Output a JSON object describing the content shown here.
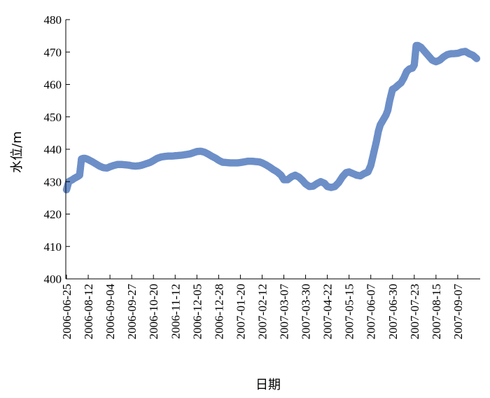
{
  "chart_data": {
    "type": "scatter",
    "title": "",
    "xlabel": "日期",
    "ylabel": "水位/m",
    "ylim": [
      400,
      480
    ],
    "xlim": [
      "2006-06-25",
      "2007-09-27"
    ],
    "y_ticks": [
      "400",
      "410",
      "420",
      "430",
      "440",
      "450",
      "460",
      "470",
      "480"
    ],
    "x_ticks": [
      "2006-06-25",
      "2006-08-12",
      "2006-09-04",
      "2006-09-27",
      "2006-10-20",
      "2006-11-12",
      "2006-12-05",
      "2006-12-28",
      "2007-01-20",
      "2007-02-12",
      "2007-03-07",
      "2007-03-30",
      "2007-04-22",
      "2007-05-15",
      "2007-06-07",
      "2007-06-30",
      "2007-07-23",
      "2007-08-15",
      "2007-09-07"
    ],
    "grid": false,
    "marker_color": "#6d8fc8",
    "series": [
      {
        "x": [
          "2006-06-25",
          "2006-06-27",
          "2006-06-30",
          "2006-07-04",
          "2006-07-08",
          "2006-07-12",
          "2006-07-16",
          "2006-07-20",
          "2006-07-24",
          "2006-07-28",
          "2006-08-01",
          "2006-08-05",
          "2006-08-09",
          "2006-08-12",
          "2006-08-16",
          "2006-08-20",
          "2006-08-24",
          "2006-08-28",
          "2006-09-01",
          "2006-09-04",
          "2006-09-08",
          "2006-09-12",
          "2006-09-16",
          "2006-09-20",
          "2006-09-24",
          "2006-09-27",
          "2006-10-01",
          "2006-10-05",
          "2006-10-09",
          "2006-10-13",
          "2006-10-17",
          "2006-10-20",
          "2006-10-24",
          "2006-10-28",
          "2006-11-01",
          "2006-11-05",
          "2006-11-09",
          "2006-11-12",
          "2006-11-16",
          "2006-11-20",
          "2006-11-24",
          "2006-11-28",
          "2006-12-02",
          "2006-12-05",
          "2006-12-09",
          "2006-12-13",
          "2006-12-17",
          "2006-12-21",
          "2006-12-25",
          "2006-12-28",
          "2007-01-01",
          "2007-01-05",
          "2007-01-09",
          "2007-01-13",
          "2007-01-17",
          "2007-01-20",
          "2007-01-24",
          "2007-01-28",
          "2007-02-01",
          "2007-02-05",
          "2007-02-09",
          "2007-02-12",
          "2007-02-16",
          "2007-02-20",
          "2007-02-24",
          "2007-02-28",
          "2007-03-04",
          "2007-03-07",
          "2007-03-11",
          "2007-03-15",
          "2007-03-19",
          "2007-03-23",
          "2007-03-27",
          "2007-03-30",
          "2007-04-03",
          "2007-04-07",
          "2007-04-11",
          "2007-04-15",
          "2007-04-19",
          "2007-04-22",
          "2007-04-26",
          "2007-04-30",
          "2007-05-04",
          "2007-05-08",
          "2007-05-12",
          "2007-05-15",
          "2007-05-19",
          "2007-05-23",
          "2007-05-27",
          "2007-05-31",
          "2007-06-04",
          "2007-06-07",
          "2007-06-09",
          "2007-06-11",
          "2007-06-13",
          "2007-06-15",
          "2007-06-17",
          "2007-06-19",
          "2007-06-21",
          "2007-06-23",
          "2007-06-25",
          "2007-06-27",
          "2007-06-30",
          "2007-07-03",
          "2007-07-06",
          "2007-07-09",
          "2007-07-12",
          "2007-07-15",
          "2007-07-18",
          "2007-07-21",
          "2007-07-23",
          "2007-07-25",
          "2007-07-27",
          "2007-07-30",
          "2007-08-02",
          "2007-08-05",
          "2007-08-08",
          "2007-08-11",
          "2007-08-15",
          "2007-08-19",
          "2007-08-23",
          "2007-08-27",
          "2007-08-31",
          "2007-09-03",
          "2007-09-07",
          "2007-09-11",
          "2007-09-15",
          "2007-09-19",
          "2007-09-23",
          "2007-09-27"
        ],
        "y": [
          427.5,
          428.5,
          430.0,
          430.3,
          430.6,
          431.0,
          431.3,
          431.6,
          432.0,
          437.0,
          437.2,
          437.2,
          437.0,
          436.8,
          436.2,
          435.5,
          434.8,
          434.3,
          434.2,
          434.6,
          435.0,
          435.3,
          435.3,
          435.2,
          435.1,
          434.9,
          434.8,
          434.9,
          435.2,
          435.6,
          436.0,
          436.5,
          437.2,
          437.6,
          437.8,
          437.9,
          437.9,
          438.0,
          438.1,
          438.2,
          438.4,
          438.6,
          439.0,
          439.3,
          439.4,
          439.1,
          438.5,
          437.8,
          437.2,
          436.6,
          436.0,
          435.9,
          435.8,
          435.8,
          435.8,
          435.9,
          436.1,
          436.3,
          436.3,
          436.2,
          436.1,
          435.8,
          435.2,
          434.5,
          433.7,
          433.0,
          432.0,
          430.6,
          430.6,
          431.5,
          432.0,
          431.4,
          430.3,
          429.3,
          428.5,
          428.6,
          429.4,
          430.0,
          429.5,
          428.5,
          428.2,
          428.5,
          429.7,
          431.5,
          432.8,
          433.0,
          432.5,
          432.0,
          431.8,
          432.5,
          433.0,
          435.0,
          437.5,
          440.0,
          442.5,
          445.5,
          447.5,
          448.5,
          449.5,
          450.5,
          452.0,
          455.0,
          458.5,
          459.0,
          459.8,
          460.5,
          462.0,
          464.0,
          464.8,
          465.0,
          466.0,
          472.0,
          472.0,
          471.5,
          470.5,
          469.5,
          468.5,
          467.5,
          467.0,
          467.5,
          468.5,
          469.2,
          469.5,
          469.5,
          469.6,
          470.0,
          470.2,
          469.5,
          469.0,
          468.0
        ]
      }
    ]
  }
}
